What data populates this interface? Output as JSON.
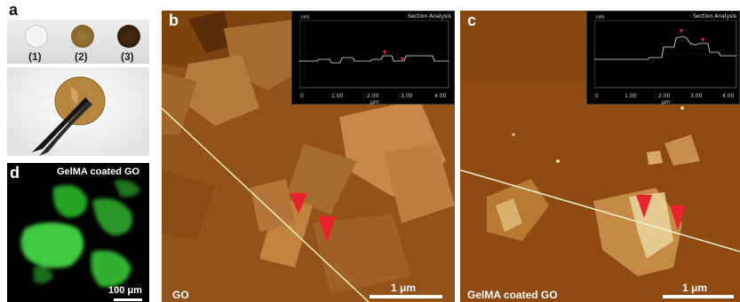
{
  "panel_a": {
    "label": "a",
    "samples": [
      {
        "label": "(1)",
        "color": "#f2f2f2"
      },
      {
        "label": "(2)",
        "color": "#8a6a2c"
      },
      {
        "label": "(3)",
        "color": "#3a2410"
      }
    ]
  },
  "panel_b": {
    "label": "b",
    "caption": "GO",
    "scale_label": "1 μm",
    "inset": {
      "title": "Section Analysis",
      "y_unit": "nm",
      "x_unit": "μm",
      "x_ticks": [
        "0",
        "1.00",
        "2.00",
        "3.00",
        "4.00"
      ]
    }
  },
  "panel_c": {
    "label": "c",
    "caption": "GelMA  coated GO",
    "scale_label": "1 μm",
    "inset": {
      "title": "Section Analysis",
      "y_unit": "nm",
      "x_unit": "μm",
      "x_ticks": [
        "0",
        "1.00",
        "2.00",
        "3.00",
        "4.00"
      ]
    }
  },
  "panel_d": {
    "label": "d",
    "caption": "GelMA  coated GO",
    "scale_label": "100 μm"
  },
  "colors": {
    "afm_bg": "#8a4a12",
    "afm_flake": "#c98d4e",
    "fluor_green": "#3fd23f",
    "marker_red": "#e8232e"
  }
}
